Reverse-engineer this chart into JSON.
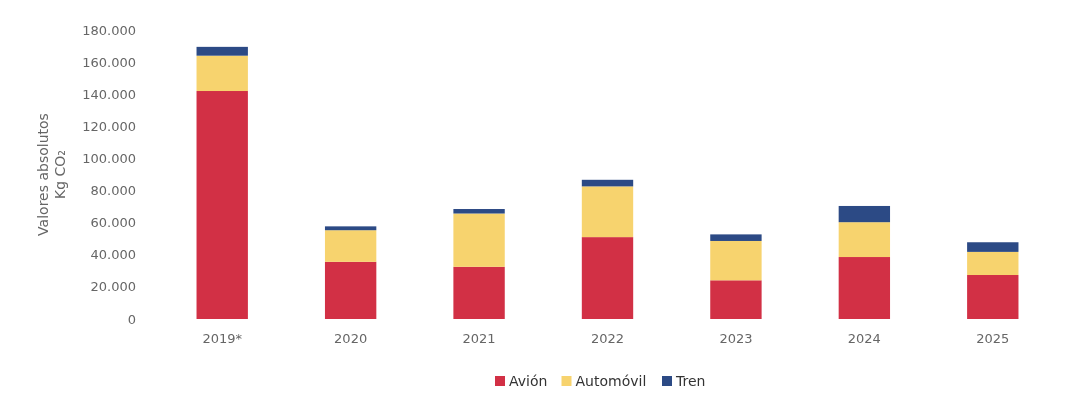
{
  "chart_data": {
    "type": "bar",
    "stacked": true,
    "ylabel": "Valores absolutos\nKg CO₂",
    "categories": [
      "2019*",
      "2020",
      "2021",
      "2022",
      "2023",
      "2024",
      "2025"
    ],
    "series": [
      {
        "name": "Avión",
        "color": "#d23045",
        "values": [
          142000,
          35600,
          32500,
          51000,
          24100,
          38600,
          27400
        ]
      },
      {
        "name": "Automóvil",
        "color": "#f7d36e",
        "values": [
          22000,
          19700,
          33200,
          31600,
          24500,
          21700,
          14400
        ]
      },
      {
        "name": "Tren",
        "color": "#2c4a85",
        "values": [
          5500,
          2400,
          2800,
          4100,
          4100,
          10100,
          6000
        ]
      }
    ],
    "ylim": [
      0,
      180000
    ],
    "yticks": [
      0,
      {
        "value": 20000,
        "label": "20.000"
      },
      {
        "value": 40000,
        "label": "40.000"
      },
      {
        "value": 60000,
        "label": "60.000"
      },
      {
        "value": 80000,
        "label": "80.000"
      },
      {
        "value": 100000,
        "label": "100.000"
      },
      {
        "value": 120000,
        "label": "120.000"
      },
      {
        "value": 140000,
        "label": "140.000"
      },
      {
        "value": 160000,
        "label": "160.000"
      },
      {
        "value": 180000,
        "label": "180.000"
      }
    ],
    "legend": "bottom"
  }
}
